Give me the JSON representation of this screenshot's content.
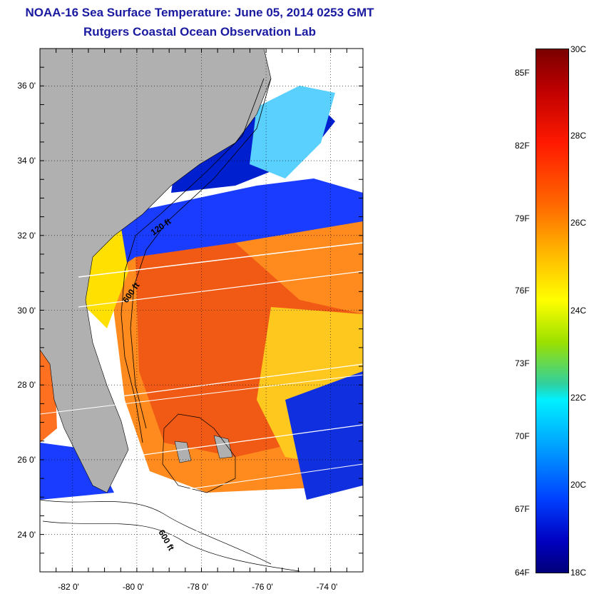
{
  "title": "NOAA-16 Sea Surface Temperature:  June 05, 2014 0253 GMT",
  "subtitle": "Rutgers Coastal Ocean Observation Lab",
  "map": {
    "lat_labels": [
      "36 0'",
      "34 0'",
      "32 0'",
      "30 0'",
      "28 0'",
      "26 0'",
      "24 0'"
    ],
    "lat_values": [
      36,
      34,
      32,
      30,
      28,
      26,
      24
    ],
    "lon_labels": [
      "-82 0'",
      "-80 0'",
      "-78 0'",
      "-76 0'",
      "-74 0'"
    ],
    "lon_values": [
      -82,
      -80,
      -78,
      -76,
      -74
    ],
    "lat_range": [
      23,
      37
    ],
    "lon_range": [
      -83,
      -73
    ],
    "depth_labels": [
      "120 ft",
      "600 ft",
      "600 ft"
    ],
    "land_color": "#b0b0b0",
    "cloud_color": "#ffffff"
  },
  "colorbar": {
    "f_labels": [
      "85F",
      "82F",
      "79F",
      "76F",
      "73F",
      "70F",
      "67F",
      "64F"
    ],
    "c_labels": [
      "30C",
      "28C",
      "26C",
      "24C",
      "22C",
      "20C",
      "18C"
    ],
    "c_range": [
      18,
      30
    ]
  }
}
